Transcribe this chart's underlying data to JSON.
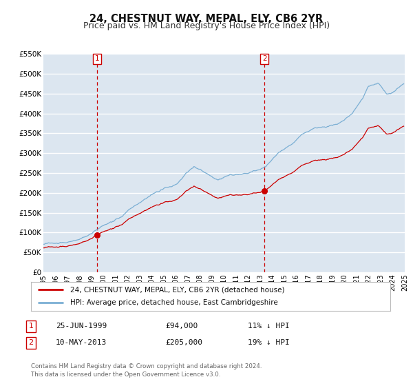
{
  "title": "24, CHESTNUT WAY, MEPAL, ELY, CB6 2YR",
  "subtitle": "Price paid vs. HM Land Registry's House Price Index (HPI)",
  "plot_bg_color": "#dce6f0",
  "grid_color": "#ffffff",
  "ylim": [
    0,
    550000
  ],
  "yticks": [
    0,
    50000,
    100000,
    150000,
    200000,
    250000,
    300000,
    350000,
    400000,
    450000,
    500000,
    550000
  ],
  "ytick_labels": [
    "£0",
    "£50K",
    "£100K",
    "£150K",
    "£200K",
    "£250K",
    "£300K",
    "£350K",
    "£400K",
    "£450K",
    "£500K",
    "£550K"
  ],
  "sale1_date": 1999.48,
  "sale1_price": 94000,
  "sale2_date": 2013.36,
  "sale2_price": 205000,
  "red_line_color": "#cc0000",
  "blue_line_color": "#7bafd4",
  "legend_label_red": "24, CHESTNUT WAY, MEPAL, ELY, CB6 2YR (detached house)",
  "legend_label_blue": "HPI: Average price, detached house, East Cambridgeshire",
  "table_row1": [
    "1",
    "25-JUN-1999",
    "£94,000",
    "11% ↓ HPI"
  ],
  "table_row2": [
    "2",
    "10-MAY-2013",
    "£205,000",
    "19% ↓ HPI"
  ],
  "footer1": "Contains HM Land Registry data © Crown copyright and database right 2024.",
  "footer2": "This data is licensed under the Open Government Licence v3.0."
}
